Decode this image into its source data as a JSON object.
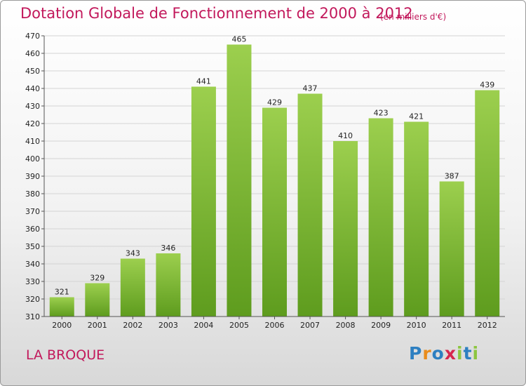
{
  "chart_data": {
    "type": "bar",
    "title": "Dotation Globale de Fonctionnement de 2000 à 2012",
    "subtitle": "(en milliers d'€)",
    "categories": [
      "2000",
      "2001",
      "2002",
      "2003",
      "2004",
      "2005",
      "2006",
      "2007",
      "2008",
      "2009",
      "2010",
      "2011",
      "2012"
    ],
    "values": [
      321,
      329,
      343,
      346,
      441,
      465,
      429,
      437,
      410,
      423,
      421,
      387,
      439
    ],
    "data_labels": [
      "321",
      "329",
      "343",
      "346",
      "441",
      "465",
      "429",
      "437",
      "410",
      "423",
      "421",
      "387",
      "439"
    ],
    "xlabel": "",
    "ylabel": "",
    "ylim": [
      310,
      470
    ],
    "yticks": [
      "310",
      "320",
      "330",
      "340",
      "350",
      "360",
      "370",
      "380",
      "390",
      "400",
      "410",
      "420",
      "430",
      "440",
      "450",
      "460",
      "470"
    ],
    "grid": true,
    "bar_color_top": "#9ccf4e",
    "bar_color_bottom": "#5e9c1e"
  },
  "footer": {
    "commune": "LA BROQUE",
    "logo_text": "Proxiti"
  },
  "colors": {
    "title": "#c2185b",
    "logo": [
      "#2d7fc1",
      "#e98c1c",
      "#2d7fc1",
      "#d6264d",
      "#8cc63f",
      "#2d7fc1",
      "#8cc63f"
    ]
  }
}
